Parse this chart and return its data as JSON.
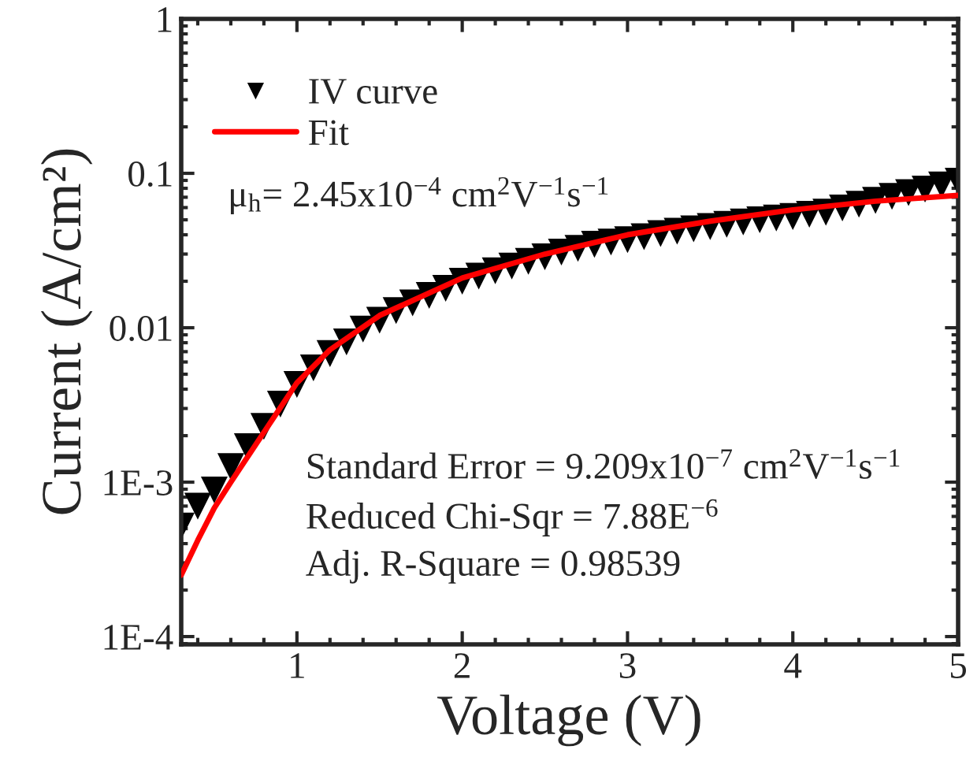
{
  "chart_data": {
    "type": "scatter",
    "xlabel": "Voltage (V)",
    "ylabel": "Current (A/cm²)",
    "xlim": [
      0.3,
      5
    ],
    "xticks": [
      1,
      2,
      3,
      4,
      5
    ],
    "ylim": [
      8.9e-05,
      1
    ],
    "log": "y",
    "yticks": [
      {
        "value": 0.0001,
        "label": "1E-4"
      },
      {
        "value": 0.001,
        "label": "1E-3"
      },
      0.01,
      0.1,
      1
    ],
    "grid": false,
    "legend": "top left",
    "series": [
      {
        "name": "IV curve",
        "marker": "triangle",
        "color": "#000000",
        "x": [
          0.3,
          0.4,
          0.5,
          0.6,
          0.7,
          0.8,
          0.9,
          1.0,
          1.1,
          1.2,
          1.3,
          1.4,
          1.5,
          1.6,
          1.7,
          1.8,
          1.9,
          2.0,
          2.1,
          2.2,
          2.3,
          2.4,
          2.5,
          2.6,
          2.7,
          2.8,
          2.9,
          3.0,
          3.1,
          3.2,
          3.3,
          3.4,
          3.5,
          3.6,
          3.7,
          3.8,
          3.9,
          4.0,
          4.1,
          4.2,
          4.3,
          4.4,
          4.5,
          4.6,
          4.7,
          4.8,
          4.9,
          5.0
        ],
        "values": [
          0.00052,
          0.0007,
          0.00089,
          0.00126,
          0.0017,
          0.0023,
          0.0032,
          0.0043,
          0.0055,
          0.0068,
          0.0081,
          0.0098,
          0.0112,
          0.0129,
          0.0145,
          0.0162,
          0.018,
          0.02,
          0.0216,
          0.0234,
          0.0251,
          0.0269,
          0.0288,
          0.0309,
          0.0327,
          0.0347,
          0.0359,
          0.0372,
          0.0389,
          0.0407,
          0.0422,
          0.0437,
          0.0452,
          0.0468,
          0.0484,
          0.05,
          0.0513,
          0.0525,
          0.0543,
          0.056,
          0.0596,
          0.063,
          0.0668,
          0.071,
          0.075,
          0.079,
          0.0841,
          0.089
        ]
      },
      {
        "name": "Fit",
        "type": "line",
        "line_style": "solid",
        "color": "#ff0000",
        "x": [
          0.3,
          0.4,
          0.5,
          0.6,
          0.8,
          1.0,
          1.2,
          1.5,
          2.0,
          2.5,
          3.0,
          3.5,
          4.0,
          4.5,
          5.0
        ],
        "values": [
          0.00025,
          0.00042,
          0.00068,
          0.001,
          0.0021,
          0.0044,
          0.0072,
          0.012,
          0.021,
          0.03,
          0.04,
          0.049,
          0.058,
          0.066,
          0.072
        ]
      }
    ],
    "annotations": [
      "μ$_{h}$= 2.45x10$^{−4}$ cm$^{2}$V$^{−1}$s$^{−1}$",
      "Standard Error = 9.209x10$^{−7}$ cm$^{2}$V$^{−1}$s$^{−1}$",
      "Reduced Chi-Sqr = 7.88E$^{−6}$",
      "Adj. R-Square = 0.98539"
    ]
  }
}
